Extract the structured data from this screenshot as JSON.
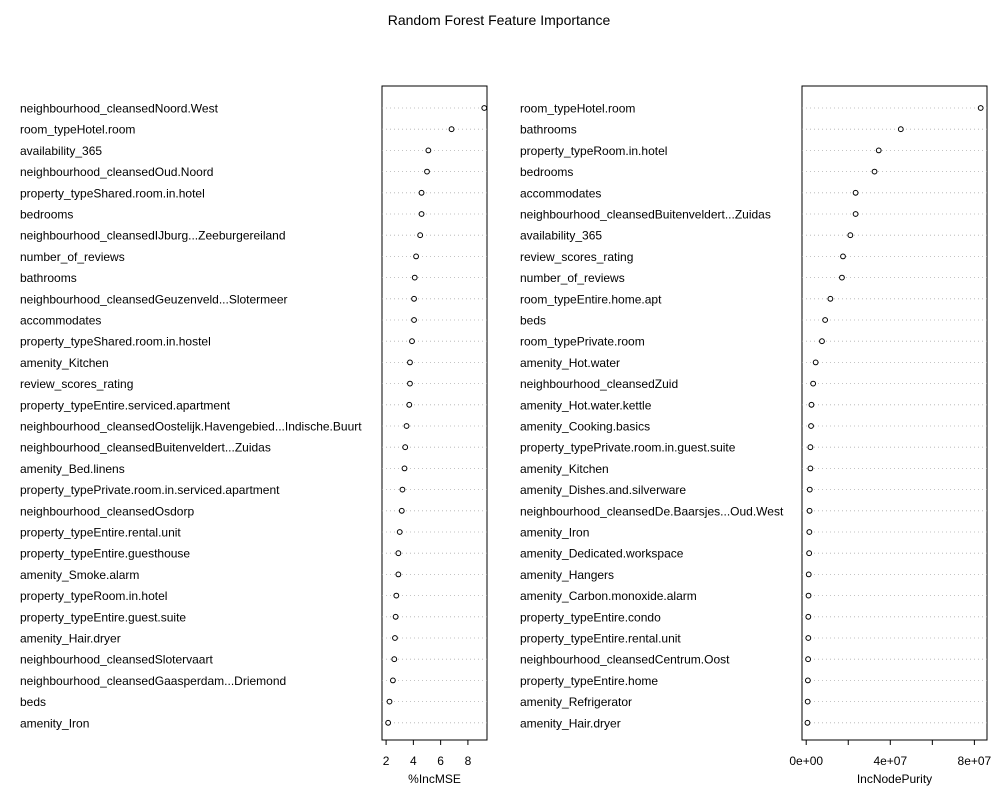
{
  "title": "Random Forest Feature Importance",
  "chart_data": [
    {
      "type": "scatter",
      "style": "dotchart",
      "xlabel": "%IncMSE",
      "xlim": [
        1.7,
        9.4
      ],
      "xticks": [
        2,
        4,
        6,
        8
      ],
      "xtick_labels": [
        "2",
        "4",
        "6",
        "8"
      ],
      "grid": "dotted horizontal",
      "categories": [
        "neighbourhood_cleansedNoord.West",
        "room_typeHotel.room",
        "availability_365",
        "neighbourhood_cleansedOud.Noord",
        "property_typeShared.room.in.hotel",
        "bedrooms",
        "neighbourhood_cleansedIJburg...Zeeburgereiland",
        "number_of_reviews",
        "bathrooms",
        "neighbourhood_cleansedGeuzenveld...Slotermeer",
        "accommodates",
        "property_typeShared.room.in.hostel",
        "amenity_Kitchen",
        "review_scores_rating",
        "property_typeEntire.serviced.apartment",
        "neighbourhood_cleansedOostelijk.Havengebied...Indische.Buurt",
        "neighbourhood_cleansedBuitenveldert...Zuidas",
        "amenity_Bed.linens",
        "property_typePrivate.room.in.serviced.apartment",
        "neighbourhood_cleansedOsdorp",
        "property_typeEntire.rental.unit",
        "property_typeEntire.guesthouse",
        "amenity_Smoke.alarm",
        "property_typeRoom.in.hotel",
        "property_typeEntire.guest.suite",
        "amenity_Hair.dryer",
        "neighbourhood_cleansedSlotervaart",
        "neighbourhood_cleansedGaasperdam...Driemond",
        "beds",
        "amenity_Iron"
      ],
      "values": [
        9.2,
        6.8,
        5.1,
        5.0,
        4.6,
        4.6,
        4.5,
        4.2,
        4.1,
        4.05,
        4.05,
        3.9,
        3.75,
        3.75,
        3.7,
        3.5,
        3.4,
        3.35,
        3.2,
        3.15,
        3.0,
        2.9,
        2.9,
        2.75,
        2.7,
        2.65,
        2.6,
        2.5,
        2.25,
        2.15
      ]
    },
    {
      "type": "scatter",
      "style": "dotchart",
      "xlabel": "IncNodePurity",
      "xlim": [
        -2000000,
        86000000
      ],
      "xticks": [
        0,
        20000000,
        40000000,
        60000000,
        80000000
      ],
      "xtick_labels": [
        "0e+00",
        "",
        "4e+07",
        "",
        "8e+07"
      ],
      "grid": "dotted horizontal",
      "categories": [
        "room_typeHotel.room",
        "bathrooms",
        "property_typeRoom.in.hotel",
        "bedrooms",
        "accommodates",
        "neighbourhood_cleansedBuitenveldert...Zuidas",
        "availability_365",
        "review_scores_rating",
        "number_of_reviews",
        "room_typeEntire.home.apt",
        "beds",
        "room_typePrivate.room",
        "amenity_Hot.water",
        "neighbourhood_cleansedZuid",
        "amenity_Hot.water.kettle",
        "amenity_Cooking.basics",
        "property_typePrivate.room.in.guest.suite",
        "amenity_Kitchen",
        "amenity_Dishes.and.silverware",
        "neighbourhood_cleansedDe.Baarsjes...Oud.West",
        "amenity_Iron",
        "amenity_Dedicated.workspace",
        "amenity_Hangers",
        "amenity_Carbon.monoxide.alarm",
        "property_typeEntire.condo",
        "property_typeEntire.rental.unit",
        "neighbourhood_cleansedCentrum.Oost",
        "property_typeEntire.home",
        "amenity_Refrigerator",
        "amenity_Hair.dryer"
      ],
      "values": [
        83000000,
        45000000,
        34500000,
        32500000,
        23500000,
        23500000,
        21000000,
        17500000,
        17000000,
        11500000,
        9000000,
        7500000,
        4500000,
        3300000,
        2500000,
        2300000,
        2000000,
        2000000,
        1700000,
        1600000,
        1500000,
        1400000,
        1200000,
        1100000,
        1000000,
        1000000,
        900000,
        800000,
        700000,
        600000
      ]
    }
  ]
}
